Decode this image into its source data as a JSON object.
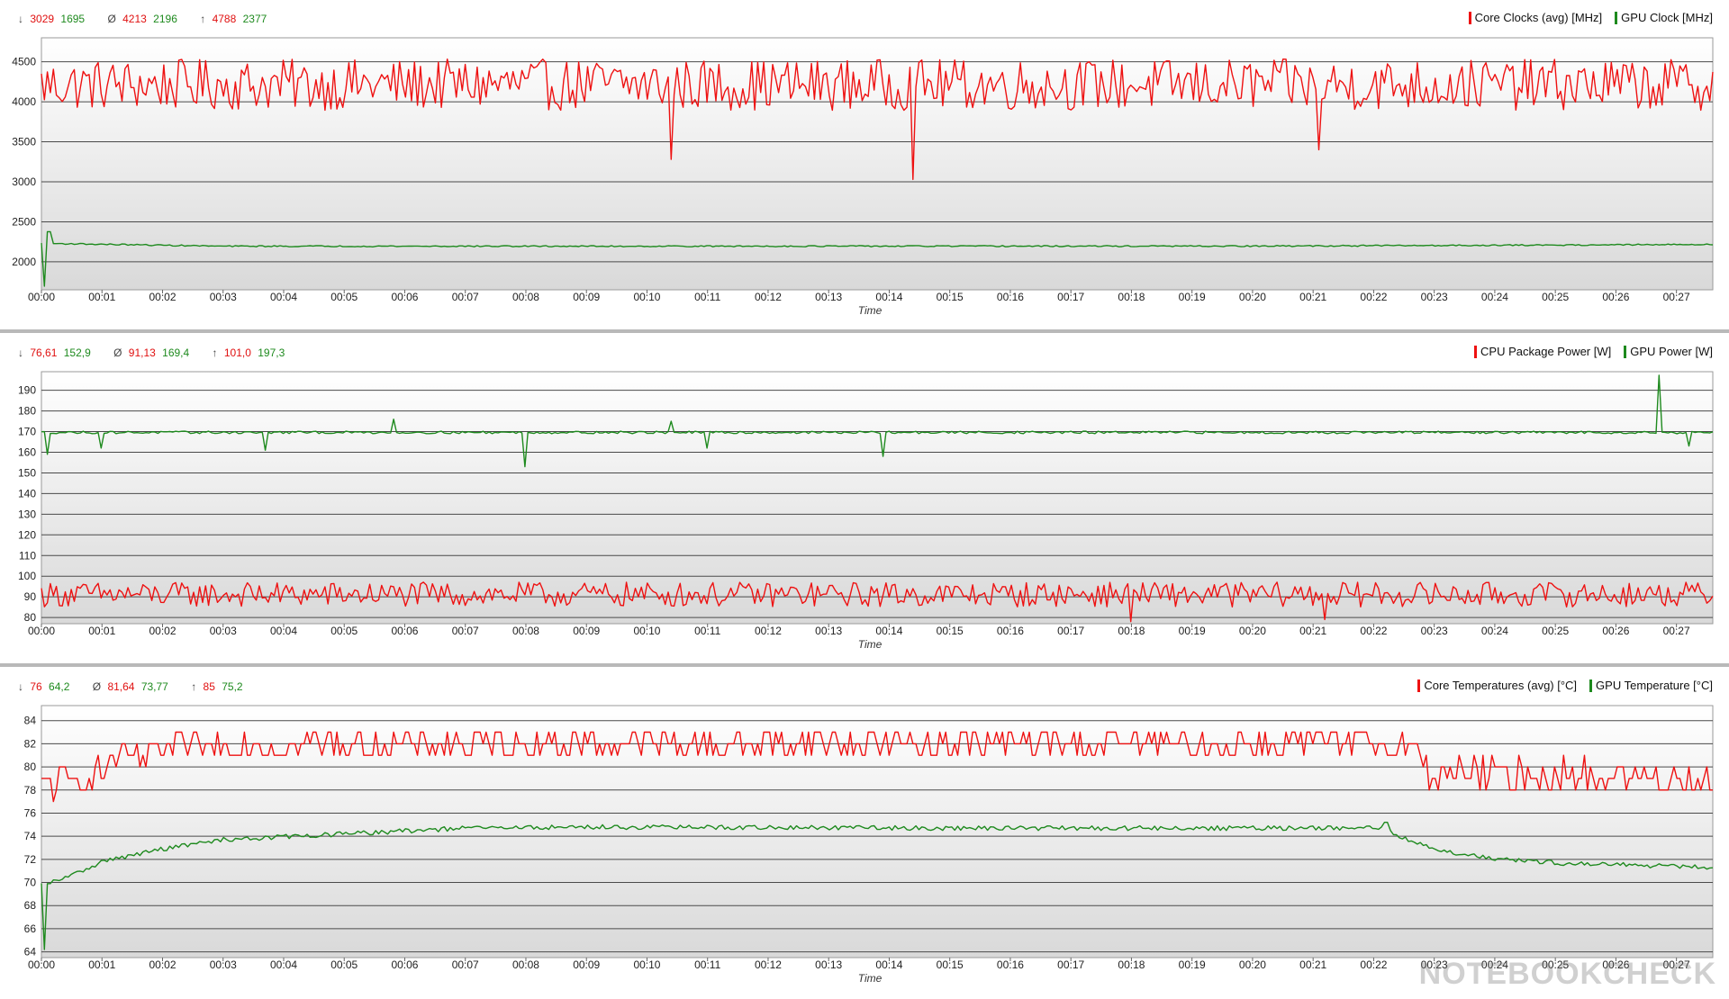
{
  "panels": [
    {
      "id": "clocks",
      "stats": {
        "min": {
          "symbol": "↓",
          "red": "3029",
          "green": "1695"
        },
        "avg": {
          "symbol": "Ø",
          "red": "4213",
          "green": "2196"
        },
        "max": {
          "symbol": "↑",
          "red": "4788",
          "green": "2377"
        }
      },
      "legend": [
        {
          "label": "Core Clocks (avg) [MHz]",
          "color": "#ee1111"
        },
        {
          "label": "GPU Clock [MHz]",
          "color": "#1e8a1e"
        }
      ],
      "chart_data": {
        "type": "line",
        "xlabel": "Time",
        "x_ticks": [
          "00:00",
          "00:01",
          "00:02",
          "00:03",
          "00:04",
          "00:05",
          "00:06",
          "00:07",
          "00:08",
          "00:09",
          "00:10",
          "00:11",
          "00:12",
          "00:13",
          "00:14",
          "00:15",
          "00:16",
          "00:17",
          "00:18",
          "00:19",
          "00:20",
          "00:21",
          "00:22",
          "00:23",
          "00:24",
          "00:25",
          "00:26",
          "00:27"
        ],
        "y_ticks": [
          2000,
          2500,
          3000,
          3500,
          4000,
          4500
        ],
        "ylim": [
          1650,
          4800
        ],
        "grid": true,
        "xlim_minutes": [
          0,
          27.6
        ],
        "series": [
          {
            "name": "Core Clocks (avg) [MHz]",
            "color": "#ee1111",
            "profile": [
              [
                0,
                4213
              ],
              [
                27.6,
                4213
              ]
            ],
            "noise": 320,
            "min": 3029,
            "max": 4788,
            "spikes": [
              [
                10.4,
                3280
              ],
              [
                14.4,
                3029
              ],
              [
                21.1,
                3400
              ]
            ]
          },
          {
            "name": "GPU Clock [MHz]",
            "color": "#1e8a1e",
            "profile": [
              [
                0,
                2230
              ],
              [
                0.5,
                2225
              ],
              [
                3,
                2195
              ],
              [
                10,
                2195
              ],
              [
                20,
                2196
              ],
              [
                27,
                2215
              ],
              [
                27.6,
                2220
              ]
            ],
            "noise": 8,
            "min": 1695,
            "max": 2377,
            "spikes": [
              [
                0.05,
                1695
              ],
              [
                0.12,
                2377
              ]
            ]
          }
        ]
      }
    },
    {
      "id": "power",
      "stats": {
        "min": {
          "symbol": "↓",
          "red": "76,61",
          "green": "152,9"
        },
        "avg": {
          "symbol": "Ø",
          "red": "91,13",
          "green": "169,4"
        },
        "max": {
          "symbol": "↑",
          "red": "101,0",
          "green": "197,3"
        }
      },
      "legend": [
        {
          "label": "CPU Package Power [W]",
          "color": "#ee1111"
        },
        {
          "label": "GPU Power [W]",
          "color": "#1e8a1e"
        }
      ],
      "chart_data": {
        "type": "line",
        "xlabel": "Time",
        "x_ticks": [
          "00:00",
          "00:01",
          "00:02",
          "00:03",
          "00:04",
          "00:05",
          "00:06",
          "00:07",
          "00:08",
          "00:09",
          "00:10",
          "00:11",
          "00:12",
          "00:13",
          "00:14",
          "00:15",
          "00:16",
          "00:17",
          "00:18",
          "00:19",
          "00:20",
          "00:21",
          "00:22",
          "00:23",
          "00:24",
          "00:25",
          "00:26",
          "00:27"
        ],
        "y_ticks": [
          80,
          90,
          100,
          110,
          120,
          130,
          140,
          150,
          160,
          170,
          180,
          190
        ],
        "ylim": [
          77,
          199
        ],
        "grid": true,
        "xlim_minutes": [
          0,
          27.6
        ],
        "series": [
          {
            "name": "CPU Package Power [W]",
            "color": "#ee1111",
            "profile": [
              [
                0,
                91.13
              ],
              [
                27.6,
                91.13
              ]
            ],
            "noise": 6,
            "min": 76.61,
            "max": 101.0,
            "spikes": [
              [
                18.0,
                78
              ],
              [
                21.2,
                79
              ]
            ]
          },
          {
            "name": "GPU Power [W]",
            "color": "#1e8a1e",
            "profile": [
              [
                0,
                169.6
              ],
              [
                27.6,
                169.6
              ]
            ],
            "noise": 0.6,
            "min": 152.9,
            "max": 197.3,
            "spikes": [
              [
                0.1,
                159
              ],
              [
                1.0,
                162
              ],
              [
                3.7,
                161
              ],
              [
                5.8,
                176
              ],
              [
                8.0,
                153
              ],
              [
                10.4,
                175
              ],
              [
                11.0,
                162
              ],
              [
                13.9,
                158
              ],
              [
                26.7,
                197.3
              ],
              [
                27.2,
                163
              ]
            ]
          }
        ]
      }
    },
    {
      "id": "temps",
      "stats": {
        "min": {
          "symbol": "↓",
          "red": "76",
          "green": "64,2"
        },
        "avg": {
          "symbol": "Ø",
          "red": "81,64",
          "green": "73,77"
        },
        "max": {
          "symbol": "↑",
          "red": "85",
          "green": "75,2"
        }
      },
      "legend": [
        {
          "label": "Core Temperatures (avg) [°C]",
          "color": "#ee1111"
        },
        {
          "label": "GPU Temperature [°C]",
          "color": "#1e8a1e"
        }
      ],
      "chart_data": {
        "type": "line",
        "xlabel": "Time",
        "x_ticks": [
          "00:00",
          "00:01",
          "00:02",
          "00:03",
          "00:04",
          "00:05",
          "00:06",
          "00:07",
          "00:08",
          "00:09",
          "00:10",
          "00:11",
          "00:12",
          "00:13",
          "00:14",
          "00:15",
          "00:16",
          "00:17",
          "00:18",
          "00:19",
          "00:20",
          "00:21",
          "00:22",
          "00:23",
          "00:24",
          "00:25",
          "00:26",
          "00:27"
        ],
        "y_ticks": [
          64,
          66,
          68,
          70,
          72,
          74,
          76,
          78,
          80,
          82,
          84
        ],
        "ylim": [
          63.5,
          85.3
        ],
        "grid": true,
        "xlim_minutes": [
          0,
          27.6
        ],
        "series": [
          {
            "name": "Core Temperatures (avg) [°C]",
            "color": "#ee1111",
            "profile": [
              [
                0,
                78.5
              ],
              [
                0.8,
                79
              ],
              [
                1.2,
                80.5
              ],
              [
                2.2,
                81.5
              ],
              [
                3,
                82
              ],
              [
                22.5,
                82
              ],
              [
                22.9,
                79.5
              ],
              [
                27.6,
                79
              ]
            ],
            "noise": 1.4,
            "min": 76,
            "max": 85,
            "step": 1
          },
          {
            "name": "GPU Temperature [°C]",
            "color": "#1e8a1e",
            "profile": [
              [
                0,
                69.8
              ],
              [
                0.5,
                70.6
              ],
              [
                1,
                71.8
              ],
              [
                2,
                72.9
              ],
              [
                3,
                73.7
              ],
              [
                5,
                74.2
              ],
              [
                7,
                74.7
              ],
              [
                9,
                74.8
              ],
              [
                15,
                74.7
              ],
              [
                22.1,
                74.7
              ],
              [
                22.5,
                73.9
              ],
              [
                23,
                72.8
              ],
              [
                24,
                72.1
              ],
              [
                25,
                71.7
              ],
              [
                27.6,
                71.3
              ]
            ],
            "noise": 0.2,
            "min": 64.2,
            "max": 75.2,
            "spikes": [
              [
                0.06,
                64.2
              ],
              [
                0.12,
                69.9
              ],
              [
                22.2,
                75.2
              ]
            ]
          }
        ]
      }
    }
  ],
  "watermark": "NOTEBOOKCHECK"
}
